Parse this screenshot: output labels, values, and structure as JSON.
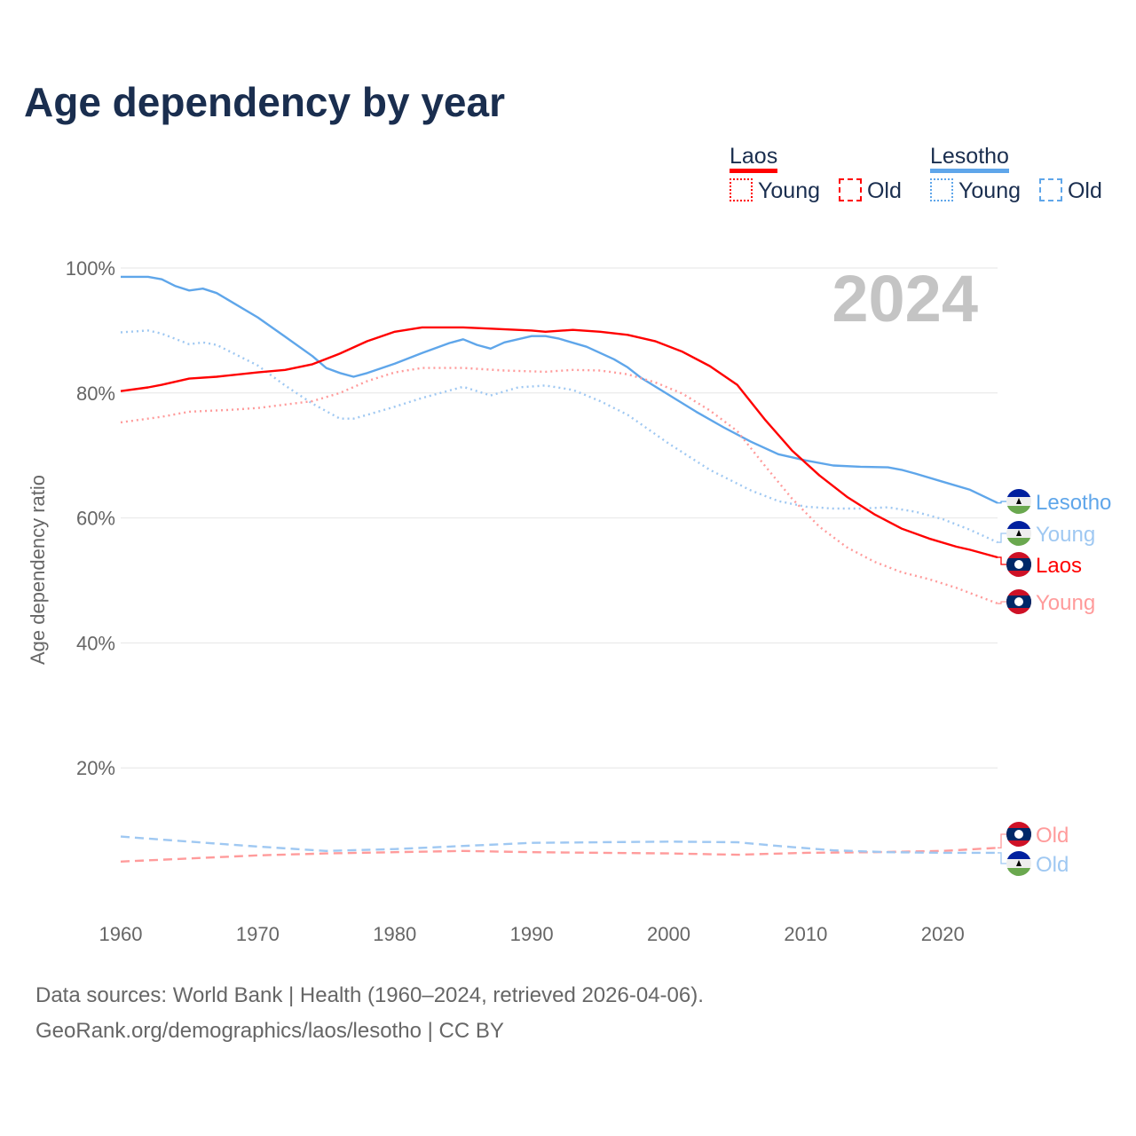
{
  "title": "Age dependency by year",
  "legend": {
    "countries": [
      {
        "name": "Laos",
        "color": "#ff0000",
        "light": "#ff9b9b"
      },
      {
        "name": "Lesotho",
        "color": "#5fa6ea",
        "light": "#9fc8f2"
      }
    ],
    "young_label": "Young",
    "old_label": "Old"
  },
  "sources": [
    "Data sources: World Bank | Health (1960–2024, retrieved 2026-04-06).",
    "GeoRank.org/demographics/laos/lesotho | CC BY"
  ],
  "chart_data": {
    "type": "line",
    "title": "Age dependency by year",
    "xlabel": "",
    "ylabel": "Age dependency ratio",
    "xlim": [
      1960,
      2024
    ],
    "ylim": [
      0,
      100
    ],
    "grid": true,
    "year_label": "2024",
    "xticks": [
      "1960",
      "1970",
      "1980",
      "1990",
      "2000",
      "2010",
      "2020"
    ],
    "yticks": [
      "20%",
      "40%",
      "60%",
      "80%",
      "100%"
    ],
    "series": [
      {
        "name": "Lesotho",
        "end_label": "Lesotho",
        "color": "#5fa6ea",
        "style": "solid",
        "flag": "lesotho",
        "x": [
          1960,
          1962,
          1963,
          1964,
          1965,
          1966,
          1967,
          1968,
          1970,
          1972,
          1974,
          1975,
          1976,
          1977,
          1978,
          1980,
          1982,
          1984,
          1985,
          1986,
          1987,
          1988,
          1990,
          1991,
          1992,
          1994,
          1996,
          1997,
          1998,
          2000,
          2002,
          2004,
          2006,
          2008,
          2010,
          2012,
          2014,
          2016,
          2017,
          2018,
          2020,
          2022,
          2024
        ],
        "y": [
          98.6,
          98.6,
          98.2,
          97.1,
          96.4,
          96.7,
          96,
          94.7,
          92.1,
          89,
          85.9,
          84,
          83.2,
          82.6,
          83.2,
          84.7,
          86.4,
          88,
          88.6,
          87.7,
          87.1,
          88.1,
          89.1,
          89.1,
          88.7,
          87.4,
          85.4,
          84.1,
          82.4,
          79.7,
          77,
          74.5,
          72.2,
          70.2,
          69.2,
          68.4,
          68.2,
          68.1,
          67.7,
          67.1,
          65.8,
          64.5,
          62.4
        ]
      },
      {
        "name": "Lesotho Young",
        "end_label": "Young",
        "color": "#9fc8f2",
        "style": "dotted",
        "flag": "lesotho",
        "x": [
          1960,
          1962,
          1963,
          1965,
          1966,
          1967,
          1970,
          1972,
          1974,
          1976,
          1977,
          1978,
          1980,
          1982,
          1985,
          1987,
          1989,
          1991,
          1993,
          1995,
          1997,
          2000,
          2003,
          2006,
          2008,
          2010,
          2012,
          2014,
          2016,
          2018,
          2020,
          2022,
          2024
        ],
        "y": [
          89.7,
          90,
          89.5,
          87.8,
          88.1,
          87.7,
          84.4,
          81.2,
          78.3,
          75.9,
          75.9,
          76.5,
          77.8,
          79.2,
          81,
          79.6,
          80.9,
          81.2,
          80.5,
          78.7,
          76.5,
          71.9,
          67.7,
          64.4,
          62.7,
          61.8,
          61.5,
          61.5,
          61.7,
          61,
          59.8,
          58.1,
          56.1
        ]
      },
      {
        "name": "Laos",
        "end_label": "Laos",
        "color": "#ff0000",
        "style": "solid",
        "flag": "laos",
        "x": [
          1960,
          1962,
          1963,
          1965,
          1967,
          1970,
          1972,
          1974,
          1976,
          1978,
          1980,
          1982,
          1985,
          1987,
          1990,
          1991,
          1993,
          1995,
          1997,
          1999,
          2001,
          2003,
          2005,
          2007,
          2009,
          2011,
          2013,
          2015,
          2017,
          2019,
          2021,
          2022,
          2024
        ],
        "y": [
          80.3,
          80.9,
          81.3,
          82.3,
          82.6,
          83.3,
          83.7,
          84.6,
          86.3,
          88.3,
          89.8,
          90.5,
          90.5,
          90.3,
          90,
          89.8,
          90.1,
          89.8,
          89.3,
          88.3,
          86.6,
          84.3,
          81.3,
          75.8,
          70.8,
          66.8,
          63.4,
          60.6,
          58.3,
          56.7,
          55.4,
          54.9,
          53.7
        ]
      },
      {
        "name": "Laos Young",
        "end_label": "Young",
        "color": "#ff9b9b",
        "style": "dotted",
        "flag": "laos",
        "x": [
          1960,
          1963,
          1965,
          1968,
          1970,
          1974,
          1976,
          1978,
          1980,
          1982,
          1985,
          1988,
          1991,
          1993,
          1995,
          1997,
          1999,
          2001,
          2003,
          2005,
          2007,
          2009,
          2011,
          2013,
          2015,
          2017,
          2019,
          2021,
          2024
        ],
        "y": [
          75.3,
          76.2,
          77,
          77.3,
          77.6,
          78.7,
          80,
          81.9,
          83.3,
          84,
          84,
          83.6,
          83.4,
          83.7,
          83.6,
          83,
          81.7,
          79.9,
          77.2,
          73.9,
          68.4,
          63.1,
          58.6,
          55.3,
          53,
          51.3,
          50.2,
          48.8,
          46.3
        ]
      },
      {
        "name": "Laos Old",
        "end_label": "Old",
        "color": "#ff9b9b",
        "style": "dashed",
        "flag": "laos",
        "x": [
          1960,
          1965,
          1970,
          1975,
          1980,
          1985,
          1990,
          1995,
          2000,
          2005,
          2010,
          2015,
          2020,
          2024
        ],
        "y": [
          5,
          5.5,
          6,
          6.3,
          6.5,
          6.7,
          6.5,
          6.4,
          6.3,
          6.1,
          6.4,
          6.5,
          6.7,
          7.2
        ]
      },
      {
        "name": "Lesotho Old",
        "end_label": "Old",
        "color": "#9fc8f2",
        "style": "dashed",
        "flag": "lesotho",
        "x": [
          1960,
          1965,
          1970,
          1975,
          1980,
          1985,
          1990,
          1995,
          2000,
          2005,
          2008,
          2012,
          2016,
          2020,
          2024
        ],
        "y": [
          9,
          8.2,
          7.4,
          6.7,
          7,
          7.5,
          8,
          8.1,
          8.2,
          8.1,
          7.5,
          6.8,
          6.5,
          6.4,
          6.4
        ]
      }
    ]
  }
}
